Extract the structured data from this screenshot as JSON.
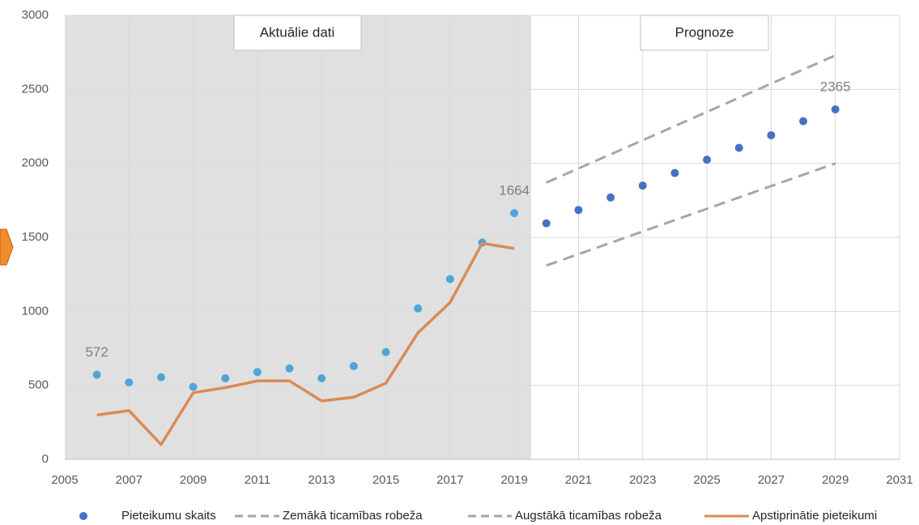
{
  "chart_data": {
    "type": "scatter",
    "xlim": [
      2005,
      2031
    ],
    "xticks": [
      2005,
      2007,
      2009,
      2011,
      2013,
      2015,
      2017,
      2019,
      2021,
      2023,
      2025,
      2027,
      2029,
      2031
    ],
    "ylim": [
      0,
      3000
    ],
    "yticks": [
      0,
      500,
      1000,
      1500,
      2000,
      2500,
      3000
    ],
    "grid": true,
    "legend": "bottom",
    "annotations": [
      "Aktuālie dati",
      "Prognoze"
    ],
    "series": [
      {
        "name": "Pieteikumu skaits",
        "type": "scatter",
        "color": "#4ea5d9",
        "point_colors": [
          "#4ea5d9",
          "#4ea5d9",
          "#4ea5d9",
          "#4ea5d9",
          "#4ea5d9",
          "#4ea5d9",
          "#4ea5d9",
          "#4ea5d9",
          "#4ea5d9",
          "#4ea5d9",
          "#4ea5d9",
          "#4ea5d9",
          "#4ea5d9",
          "#4ea5d9",
          "#4472c4",
          "#4472c4",
          "#4472c4",
          "#4472c4",
          "#4472c4",
          "#4472c4",
          "#4472c4",
          "#4472c4",
          "#4472c4",
          "#4472c4"
        ],
        "x": [
          2006,
          2007,
          2008,
          2009,
          2010,
          2011,
          2012,
          2013,
          2014,
          2015,
          2016,
          2017,
          2018,
          2019,
          2020,
          2021,
          2022,
          2023,
          2024,
          2025,
          2026,
          2027,
          2028,
          2029
        ],
        "values": [
          572,
          520,
          555,
          490,
          548,
          590,
          615,
          548,
          630,
          725,
          1020,
          1218,
          1465,
          1664,
          1595,
          1685,
          1770,
          1850,
          1935,
          2025,
          2105,
          2190,
          2285,
          2365
        ],
        "value_labels": [
          "572",
          null,
          null,
          null,
          null,
          null,
          null,
          null,
          null,
          null,
          null,
          null,
          null,
          "1664",
          null,
          null,
          null,
          null,
          null,
          null,
          null,
          null,
          null,
          "2365"
        ]
      },
      {
        "name": "Zemākā ticamības robeža",
        "type": "line",
        "dash": true,
        "color": "#a6a6a6",
        "x": [
          2020,
          2029
        ],
        "values": [
          1310,
          2000
        ]
      },
      {
        "name": "Augstākā ticamības robeža",
        "type": "line",
        "dash": true,
        "color": "#a6a6a6",
        "x": [
          2020,
          2029
        ],
        "values": [
          1870,
          2730
        ]
      },
      {
        "name": "Apstiprinātie pieteikumi",
        "type": "line",
        "dash": false,
        "color": "#d98b54",
        "x": [
          2006,
          2007,
          2008,
          2009,
          2010,
          2011,
          2012,
          2013,
          2014,
          2015,
          2016,
          2017,
          2018,
          2019
        ],
        "values": [
          300,
          330,
          100,
          450,
          485,
          530,
          530,
          395,
          420,
          515,
          855,
          1060,
          1460,
          1425
        ]
      }
    ]
  }
}
